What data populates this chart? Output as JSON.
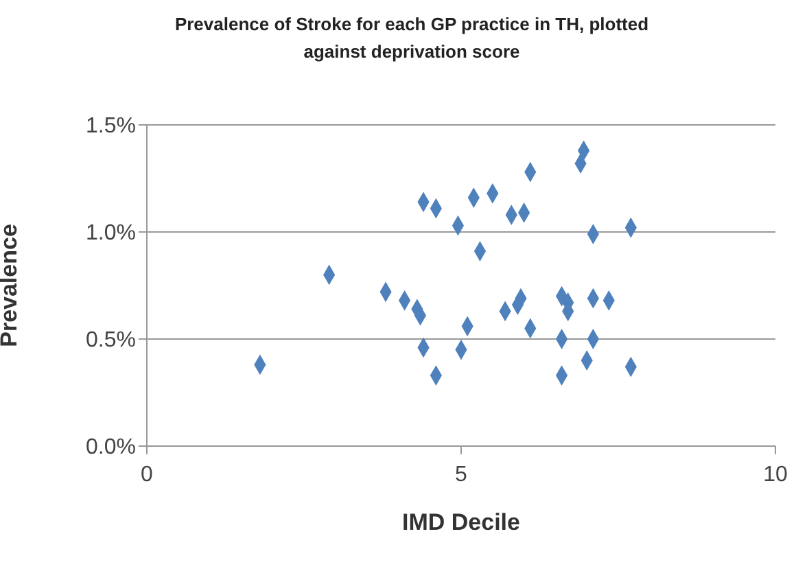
{
  "chart_data": {
    "type": "scatter",
    "title": "Prevalence of Stroke for each GP practice in TH, plotted against deprivation score",
    "xlabel": "IMD Decile",
    "ylabel": "Prevalence",
    "x": [
      1.8,
      2.9,
      3.8,
      4.1,
      4.3,
      4.35,
      4.4,
      4.4,
      4.6,
      4.6,
      4.95,
      5.0,
      5.1,
      5.2,
      5.3,
      5.5,
      5.7,
      5.8,
      5.9,
      5.95,
      6.0,
      6.1,
      6.1,
      6.6,
      6.6,
      6.6,
      6.7,
      6.7,
      6.9,
      6.95,
      7.0,
      7.1,
      7.1,
      7.1,
      7.35,
      7.7,
      7.7
    ],
    "series": [
      {
        "color": "#4f81bd",
        "values": [
          0.38,
          0.8,
          0.72,
          0.68,
          0.64,
          0.61,
          1.14,
          0.46,
          1.11,
          0.33,
          1.03,
          0.45,
          0.56,
          1.16,
          0.91,
          1.18,
          0.63,
          1.08,
          0.66,
          0.69,
          1.09,
          0.55,
          1.28,
          0.7,
          0.5,
          0.33,
          0.67,
          0.63,
          1.32,
          1.38,
          0.4,
          0.99,
          0.69,
          0.5,
          0.68,
          1.02,
          0.37
        ]
      }
    ],
    "xlim": [
      0,
      10
    ],
    "xticks": [
      0,
      5,
      10
    ],
    "ylim": [
      0,
      1.5
    ],
    "yticks": [
      {
        "value": 0,
        "label": "0.0%"
      },
      {
        "value": 0.5,
        "label": "0.5%"
      },
      {
        "value": 1,
        "label": "1.0%"
      },
      {
        "value": 1.5,
        "label": "1.5%"
      }
    ],
    "grid": "y",
    "marker": "diamond",
    "legend": false
  }
}
